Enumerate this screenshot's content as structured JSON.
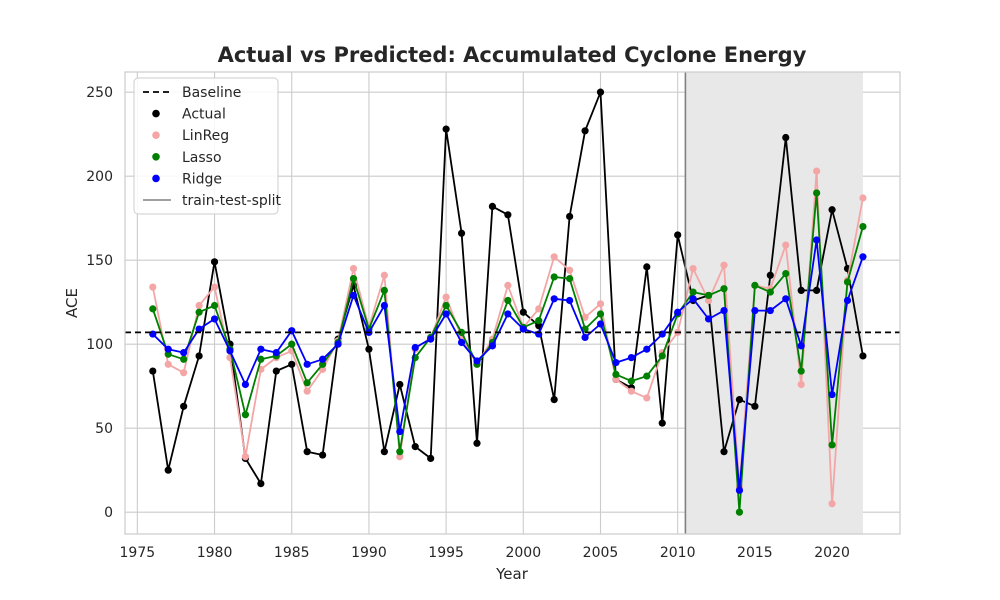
{
  "chart_data": {
    "type": "line",
    "title": "Actual vs Predicted: Accumulated Cyclone Energy",
    "xlabel": "Year",
    "ylabel": "ACE",
    "xlim": [
      1974.2,
      2024.4
    ],
    "ylim": [
      -13,
      262
    ],
    "xticks": [
      1975,
      1980,
      1985,
      1990,
      1995,
      2000,
      2005,
      2010,
      2015,
      2020
    ],
    "yticks": [
      0,
      50,
      100,
      150,
      200,
      250
    ],
    "grid": true,
    "legend_position": "top-left",
    "baseline": 107,
    "train_test_split": 2010.5,
    "test_range": [
      2010.5,
      2022
    ],
    "x": [
      1976,
      1977,
      1978,
      1979,
      1980,
      1981,
      1982,
      1983,
      1984,
      1985,
      1986,
      1987,
      1988,
      1989,
      1990,
      1991,
      1992,
      1993,
      1994,
      1995,
      1996,
      1997,
      1998,
      1999,
      2000,
      2001,
      2002,
      2003,
      2004,
      2005,
      2006,
      2007,
      2008,
      2009,
      2010,
      2011,
      2012,
      2013,
      2014,
      2015,
      2016,
      2017,
      2018,
      2019,
      2020,
      2021,
      2022
    ],
    "series": [
      {
        "name": "Actual",
        "color": "#000000",
        "values": [
          84,
          25,
          63,
          93,
          149,
          100,
          32,
          17,
          84,
          88,
          36,
          34,
          103,
          135,
          97,
          36,
          76,
          39,
          32,
          228,
          166,
          41,
          182,
          177,
          119,
          111,
          67,
          176,
          227,
          250,
          79,
          74,
          146,
          53,
          165,
          126,
          129,
          36,
          67,
          63,
          141,
          223,
          132,
          132,
          180,
          145,
          93
        ]
      },
      {
        "name": "LinReg",
        "color": "#f4a6a6",
        "values": [
          134,
          88,
          83,
          123,
          134,
          92,
          33,
          85,
          92,
          96,
          72,
          85,
          102,
          145,
          110,
          141,
          33,
          97,
          104,
          128,
          104,
          88,
          103,
          135,
          110,
          121,
          152,
          144,
          116,
          124,
          79,
          72,
          68,
          95,
          107,
          145,
          126,
          147,
          15,
          135,
          133,
          159,
          76,
          203,
          5,
          138,
          187
        ]
      },
      {
        "name": "Lasso",
        "color": "#008000",
        "values": [
          121,
          94,
          91,
          119,
          123,
          97,
          58,
          91,
          93,
          100,
          77,
          88,
          101,
          139,
          109,
          132,
          36,
          92,
          104,
          123,
          107,
          88,
          101,
          126,
          110,
          114,
          140,
          139,
          109,
          118,
          82,
          78,
          81,
          93,
          118,
          131,
          129,
          133,
          0,
          135,
          131,
          142,
          84,
          190,
          40,
          137,
          170
        ]
      },
      {
        "name": "Ridge",
        "color": "#0000ff",
        "values": [
          106,
          97,
          95,
          109,
          115,
          96,
          76,
          97,
          95,
          108,
          88,
          91,
          100,
          129,
          107,
          123,
          48,
          98,
          103,
          118,
          101,
          90,
          99,
          118,
          109,
          106,
          127,
          126,
          104,
          112,
          89,
          92,
          97,
          106,
          119,
          127,
          115,
          120,
          13,
          120,
          120,
          127,
          99,
          162,
          70,
          126,
          152
        ]
      }
    ],
    "legend": [
      "Baseline",
      "Actual",
      "LinReg",
      "Lasso",
      "Ridge",
      "train-test-split"
    ],
    "colors": {
      "baseline": "#000000",
      "split": "#808080",
      "shade": "#e8e8e8",
      "grid": "#cccccc"
    }
  }
}
